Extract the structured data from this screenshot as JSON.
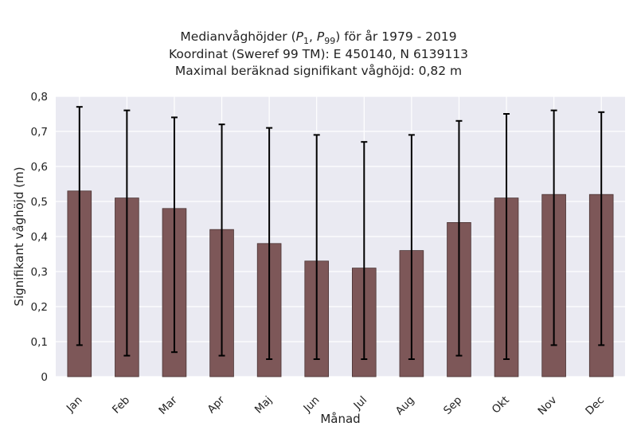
{
  "title_lines": {
    "l1_pre": "Medianvåghöjder (",
    "l1_p1": "P",
    "l1_sub1": "1",
    "l1_sep": ", ",
    "l1_p2": "P",
    "l1_sub2": "99",
    "l1_post": ") för år 1979 - 2019",
    "l2": "Koordinat (Sweref 99 TM): E 450140, N 6139113",
    "l3": "Maximal beräknad signifikant våghöjd: 0,82 m"
  },
  "colors": {
    "bar": "#7d5758",
    "bar_edge": "#4a3434",
    "plot_bg": "#eaeaf2",
    "grid": "#ffffff",
    "error": "#000000"
  },
  "chart_data": {
    "type": "bar",
    "categories": [
      "Jan",
      "Feb",
      "Mar",
      "Apr",
      "Maj",
      "Jun",
      "Jul",
      "Aug",
      "Sep",
      "Okt",
      "Nov",
      "Dec"
    ],
    "values": [
      0.53,
      0.51,
      0.48,
      0.42,
      0.38,
      0.33,
      0.31,
      0.36,
      0.44,
      0.51,
      0.52,
      0.52
    ],
    "err_low": [
      0.09,
      0.06,
      0.07,
      0.06,
      0.05,
      0.05,
      0.05,
      0.05,
      0.06,
      0.05,
      0.09,
      0.09
    ],
    "err_high": [
      0.77,
      0.76,
      0.74,
      0.72,
      0.71,
      0.69,
      0.67,
      0.69,
      0.73,
      0.75,
      0.76,
      0.755
    ],
    "xlabel": "Månad",
    "ylabel": "Signifikant våghöjd (m)",
    "ylim": [
      0,
      0.8
    ],
    "yticks": [
      0,
      0.1,
      0.2,
      0.3,
      0.4,
      0.5,
      0.6,
      0.7,
      0.8
    ],
    "ytick_labels": [
      "0",
      "0,1",
      "0,2",
      "0,3",
      "0,4",
      "0,5",
      "0,6",
      "0,7",
      "0,8"
    ],
    "grid": true
  }
}
